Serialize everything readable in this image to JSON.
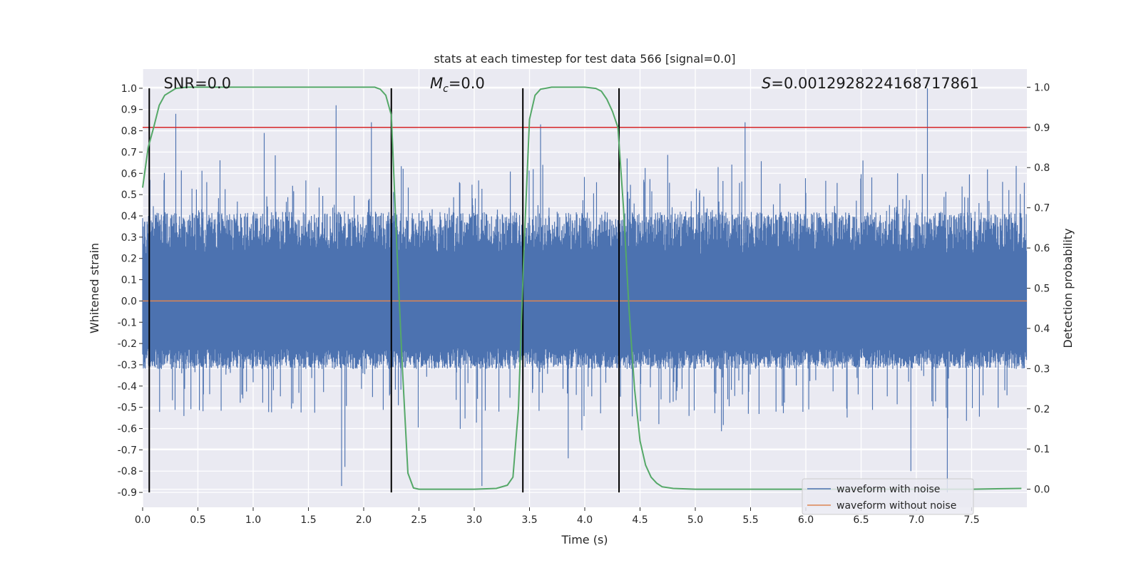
{
  "chart_data": {
    "type": "line",
    "title": "stats at each timestep for test data 566 [signal=0.0]",
    "xlabel": "Time (s)",
    "ylabel": "Whitened strain",
    "y2label": "Detection probability",
    "xlim": [
      0.0,
      8.0
    ],
    "ylim": [
      -0.97,
      1.09
    ],
    "y2lim": [
      -0.045,
      1.045
    ],
    "x_ticks": [
      0.0,
      0.5,
      1.0,
      1.5,
      2.0,
      2.5,
      3.0,
      3.5,
      4.0,
      4.5,
      5.0,
      5.5,
      6.0,
      6.5,
      7.0,
      7.5
    ],
    "x_tick_labels": [
      "0.0",
      "0.5",
      "1.0",
      "1.5",
      "2.0",
      "2.5",
      "3.0",
      "3.5",
      "4.0",
      "4.5",
      "5.0",
      "5.5",
      "6.0",
      "6.5",
      "7.0",
      "7.5"
    ],
    "y_ticks": [
      1.0,
      0.9,
      0.8,
      0.7,
      0.6,
      0.5,
      0.4,
      0.3,
      0.2,
      0.1,
      0.0,
      -0.1,
      -0.2,
      -0.3,
      -0.4,
      -0.5,
      -0.6,
      -0.7,
      -0.8,
      -0.9
    ],
    "y_tick_labels": [
      "1.0",
      "0.9",
      "0.8",
      "0.7",
      "0.6",
      "0.5",
      "0.4",
      "0.3",
      "0.2",
      "0.1",
      "0.0",
      "-0.1",
      "-0.2",
      "-0.3",
      "-0.4",
      "-0.5",
      "-0.6",
      "-0.7",
      "-0.8",
      "-0.9"
    ],
    "y2_ticks": [
      1.0,
      0.9,
      0.8,
      0.7,
      0.6,
      0.5,
      0.4,
      0.3,
      0.2,
      0.1,
      0.0
    ],
    "y2_tick_labels": [
      "1.0",
      "0.9",
      "0.8",
      "0.7",
      "0.6",
      "0.5",
      "0.4",
      "0.3",
      "0.2",
      "0.1",
      "0.0"
    ],
    "grid": true,
    "legend_position": "bottom-right",
    "series": [
      {
        "name": "waveform with noise",
        "color": "#4c72b0",
        "type": "dense-noise",
        "peak_max": 1.0,
        "trough_min": -0.9
      },
      {
        "name": "waveform without noise",
        "color": "#dd8452",
        "x": [
          0.0,
          8.0
        ],
        "values": [
          0.0,
          0.0
        ]
      },
      {
        "color": "#55a868",
        "axis": "secondary",
        "x": [
          0.0,
          0.05,
          0.1,
          0.15,
          0.2,
          0.3,
          0.4,
          0.6,
          1.0,
          1.5,
          2.0,
          2.1,
          2.15,
          2.2,
          2.25,
          2.3,
          2.35,
          2.4,
          2.45,
          2.5,
          2.6,
          3.0,
          3.2,
          3.3,
          3.35,
          3.4,
          3.45,
          3.5,
          3.55,
          3.6,
          3.7,
          4.0,
          4.1,
          4.15,
          4.2,
          4.25,
          4.3,
          4.35,
          4.4,
          4.45,
          4.5,
          4.55,
          4.6,
          4.65,
          4.7,
          4.8,
          5.0,
          6.0,
          7.0,
          7.5,
          7.95
        ],
        "values": [
          0.75,
          0.85,
          0.9,
          0.955,
          0.98,
          0.997,
          1.0,
          1.0,
          1.0,
          1.0,
          1.0,
          1.0,
          0.995,
          0.98,
          0.93,
          0.6,
          0.3,
          0.04,
          0.003,
          0.0,
          0.0,
          0.0,
          0.002,
          0.01,
          0.03,
          0.2,
          0.6,
          0.92,
          0.98,
          0.995,
          1.0,
          1.0,
          0.997,
          0.99,
          0.97,
          0.94,
          0.9,
          0.7,
          0.45,
          0.25,
          0.12,
          0.06,
          0.03,
          0.015,
          0.006,
          0.002,
          0.0,
          0.0,
          0.0,
          0.0,
          0.002
        ]
      },
      {
        "color": "#d62728",
        "axis": "secondary",
        "x": [
          0.0,
          8.0
        ],
        "values": [
          0.9,
          0.9
        ]
      }
    ],
    "vertical_lines": [
      0.06,
      2.25,
      3.44,
      4.31
    ],
    "annotations": [
      {
        "text": "SNR=0.0",
        "x": 0.19
      },
      {
        "text": "Mc=0.0",
        "x": 2.6
      },
      {
        "text": "S=0.0012928224168717861",
        "x": 5.6
      }
    ]
  }
}
